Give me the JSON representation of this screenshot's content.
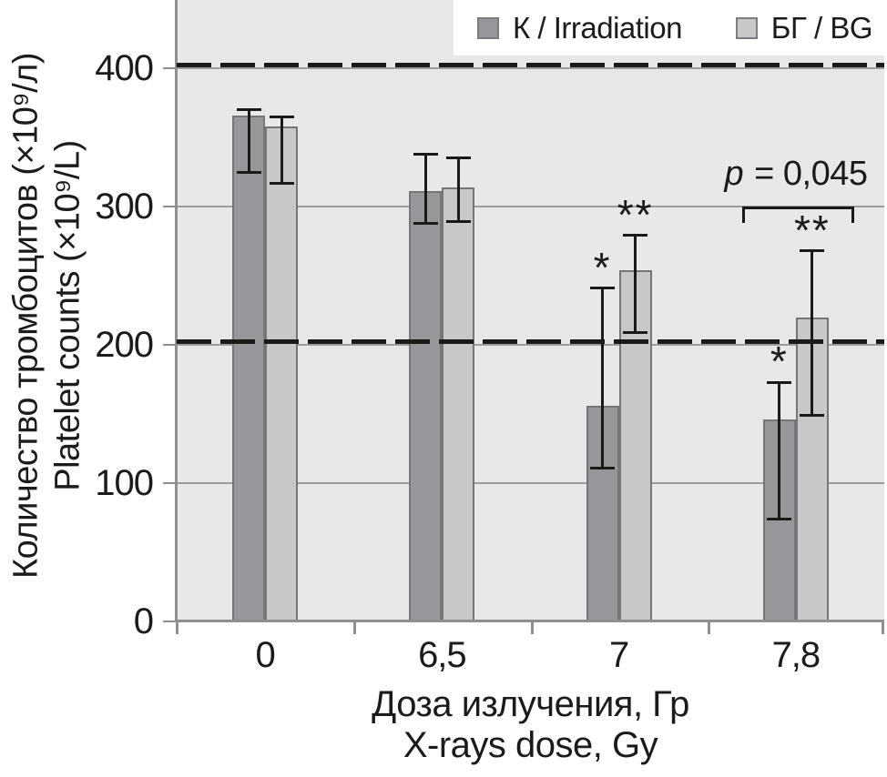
{
  "chart_data": {
    "type": "bar",
    "categories": [
      "0",
      "6,5",
      "7",
      "7,8"
    ],
    "series": [
      {
        "name": "К / Irradiation",
        "color": "#97979b",
        "values": [
          366,
          311,
          156,
          146
        ],
        "err_low": [
          325,
          288,
          111,
          74
        ],
        "err_high": [
          370,
          338,
          241,
          173
        ],
        "annotations": [
          "",
          "",
          "*",
          "*"
        ]
      },
      {
        "name": "БГ / BG",
        "color": "#c8c8ca",
        "values": [
          358,
          314,
          254,
          220
        ],
        "err_low": [
          317,
          289,
          209,
          149
        ],
        "err_high": [
          365,
          335,
          279,
          268
        ],
        "annotations": [
          "",
          "",
          "**",
          "**"
        ]
      }
    ],
    "ylabel_line1": "Количество тромбоцитов (×10⁹/л)",
    "ylabel_line2": "Platelet counts (×10⁹/L)",
    "xlabel_line1": "Доза излучения, Гр",
    "xlabel_line2": "X-rays dose, Gy",
    "yticks": [
      {
        "label": "0",
        "value": 0
      },
      {
        "label": "100",
        "value": 100
      },
      {
        "label": "200",
        "value": 200
      },
      {
        "label": "300",
        "value": 300
      },
      {
        "label": "400",
        "value": 400
      }
    ],
    "ylim": [
      0,
      450
    ],
    "grid": true,
    "reference_lines": [
      200,
      400
    ],
    "legend_position": "top-right",
    "significance": {
      "label_p": "p",
      "label_rest": " = 0,045",
      "group_index": 3
    }
  },
  "colors": {
    "plot_background": "#e8e8ea",
    "axis": "#8f8f8f",
    "gridline": "#9c9c9e",
    "reference_line": "#1a1a1a",
    "error_bar": "#1a1a1a",
    "text": "#1b1b1b",
    "legend_background": "#ffffff"
  }
}
